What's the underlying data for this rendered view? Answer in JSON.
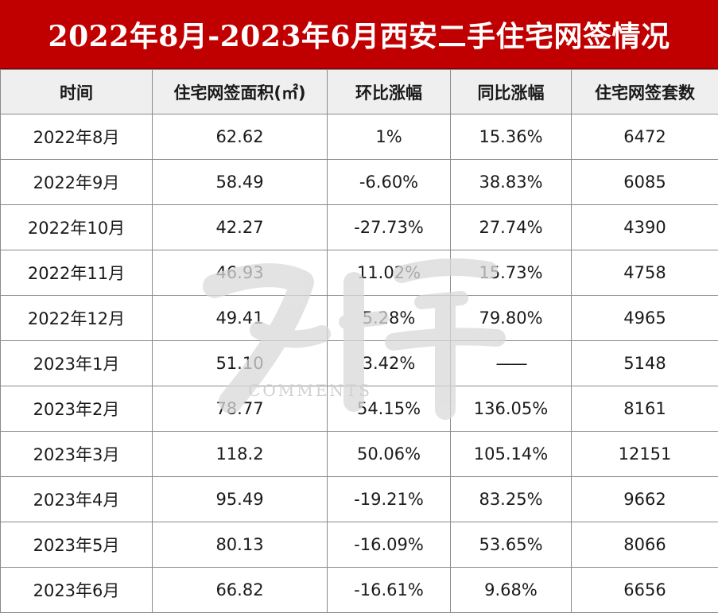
{
  "title": "2022年8月-2023年6月西安二手住宅网签情况",
  "watermark_text": "COMMENTS",
  "chart_data": {
    "type": "table",
    "columns": [
      "时间",
      "住宅网签面积(㎡)",
      "环比涨幅",
      "同比涨幅",
      "住宅网签套数"
    ],
    "rows": [
      [
        "2022年8月",
        "62.62",
        "1%",
        "15.36%",
        "6472"
      ],
      [
        "2022年9月",
        "58.49",
        "-6.60%",
        "38.83%",
        "6085"
      ],
      [
        "2022年10月",
        "42.27",
        "-27.73%",
        "27.74%",
        "4390"
      ],
      [
        "2022年11月",
        "46.93",
        "11.02%",
        "15.73%",
        "4758"
      ],
      [
        "2022年12月",
        "49.41",
        "5.28%",
        "79.80%",
        "4965"
      ],
      [
        "2023年1月",
        "51.10",
        "3.42%",
        "——",
        "5148"
      ],
      [
        "2023年2月",
        "78.77",
        "54.15%",
        "136.05%",
        "8161"
      ],
      [
        "2023年3月",
        "118.2",
        "50.06%",
        "105.14%",
        "12151"
      ],
      [
        "2023年4月",
        "95.49",
        "-19.21%",
        "83.25%",
        "9662"
      ],
      [
        "2023年5月",
        "80.13",
        "-16.09%",
        "53.65%",
        "8066"
      ],
      [
        "2023年6月",
        "66.82",
        "-16.61%",
        "9.68%",
        "6656"
      ]
    ]
  },
  "colors": {
    "title_bg": "#c00000",
    "header_bg": "#efefef",
    "border": "#8a8a8a"
  }
}
